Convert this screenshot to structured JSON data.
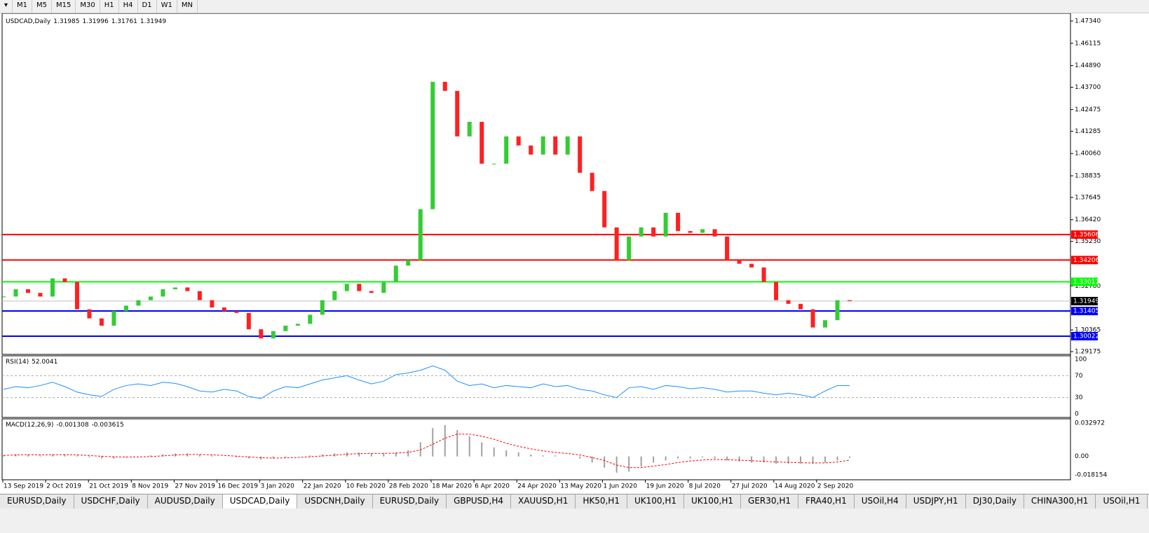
{
  "toolbar": {
    "timeframes": [
      "M1",
      "M5",
      "M15",
      "M30",
      "H1",
      "H4",
      "D1",
      "W1",
      "MN"
    ]
  },
  "price_panel": {
    "symbol": "USDCAD,Daily",
    "ohlc": [
      1.31985,
      1.31996,
      1.31761,
      1.31949
    ],
    "ylim": [
      1.29175,
      1.4734
    ],
    "yticks": [
      {
        "value": 1.4734,
        "label": "1.47340"
      },
      1.46115,
      {
        "value": 1.4489,
        "label": "1.44890"
      },
      {
        "value": 1.437,
        "label": "1.43700"
      },
      1.42475,
      1.41285,
      {
        "value": 1.4006,
        "label": "1.40060"
      },
      1.38835,
      1.37645,
      {
        "value": 1.3642,
        "label": "1.36420"
      },
      {
        "value": 1.3523,
        "label": "1.35230"
      },
      {
        "value": 1.3278,
        "label": "1.32780"
      },
      1.30365,
      1.29175
    ],
    "levels": [
      {
        "value": 1.35606,
        "color": "#ff0000"
      },
      {
        "value": 1.34206,
        "color": "#ff0000"
      },
      {
        "value": 1.33011,
        "color": "#00ff00"
      },
      {
        "value": 1.31405,
        "color": "#0000ff"
      },
      {
        "value": 1.30022,
        "color": "#0000ff"
      }
    ],
    "current": 1.31949,
    "closes": [
      1.322,
      1.326,
      1.324,
      1.322,
      1.332,
      1.33,
      1.315,
      1.31,
      1.306,
      1.314,
      1.317,
      1.32,
      1.322,
      1.326,
      1.327,
      1.325,
      1.32,
      1.316,
      1.314,
      1.313,
      1.304,
      1.299,
      1.303,
      1.306,
      1.307,
      1.312,
      1.32,
      1.325,
      1.329,
      1.325,
      1.324,
      1.33,
      1.339,
      1.342,
      1.37,
      1.44,
      1.435,
      1.41,
      1.418,
      1.395,
      1.395,
      1.41,
      1.405,
      1.4,
      1.41,
      1.4,
      1.41,
      1.39,
      1.38,
      1.36,
      1.342,
      1.355,
      1.36,
      1.355,
      1.368,
      1.358,
      1.357,
      1.359,
      1.355,
      1.342,
      1.34,
      1.338,
      1.33,
      1.32,
      1.318,
      1.315,
      1.305,
      1.309,
      1.32,
      1.31949
    ]
  },
  "rsi_panel": {
    "name": "RSI(14)",
    "last": 52.0041,
    "ylim": [
      0,
      100
    ],
    "yticks": [
      100,
      70,
      30,
      0
    ],
    "levels": [
      70,
      30
    ],
    "values": [
      45,
      50,
      48,
      52,
      58,
      50,
      40,
      35,
      32,
      45,
      52,
      55,
      52,
      58,
      56,
      50,
      42,
      40,
      45,
      42,
      32,
      28,
      42,
      50,
      48,
      55,
      62,
      66,
      70,
      62,
      55,
      60,
      72,
      75,
      80,
      88,
      80,
      60,
      52,
      55,
      48,
      52,
      50,
      48,
      55,
      50,
      52,
      45,
      42,
      35,
      30,
      48,
      50,
      45,
      52,
      50,
      46,
      48,
      45,
      40,
      42,
      42,
      38,
      35,
      38,
      35,
      30,
      42,
      52,
      52
    ]
  },
  "macd_panel": {
    "name": "MACD(12,26,9)",
    "last": [
      -0.001308,
      -0.003615
    ],
    "ylim": [
      -0.018154,
      0.032972
    ],
    "yticks": [
      0.032972,
      {
        "value": 0,
        "label": "0.00"
      },
      -0.018154
    ],
    "histogram": [
      0.001,
      0.002,
      0.002,
      0.001,
      0.002,
      0.002,
      0.001,
      -0.001,
      -0.002,
      -0.002,
      -0.001,
      0,
      0.001,
      0.002,
      0.003,
      0.003,
      0.002,
      0.001,
      0,
      -0.001,
      -0.002,
      -0.003,
      -0.002,
      -0.001,
      0,
      0.001,
      0.002,
      0.003,
      0.004,
      0.004,
      0.003,
      0.003,
      0.004,
      0.006,
      0.014,
      0.028,
      0.031,
      0.026,
      0.02,
      0.014,
      0.009,
      0.006,
      0.004,
      0.002,
      0.001,
      0.001,
      0,
      -0.002,
      -0.006,
      -0.011,
      -0.016,
      -0.015,
      -0.01,
      -0.006,
      -0.004,
      -0.002,
      -0.002,
      -0.001,
      -0.002,
      -0.004,
      -0.005,
      -0.006,
      -0.006,
      -0.007,
      -0.007,
      -0.007,
      -0.007,
      -0.006,
      -0.004,
      -0.001308
    ],
    "signal": [
      0.001,
      0.0015,
      0.0018,
      0.0016,
      0.0017,
      0.0018,
      0.0016,
      0.0009,
      0.0002,
      -0.0004,
      -0.0006,
      -0.0005,
      -0.0001,
      0.0006,
      0.0014,
      0.002,
      0.002,
      0.0016,
      0.001,
      0.0003,
      -0.0004,
      -0.0012,
      -0.0016,
      -0.0014,
      -0.001,
      -0.0003,
      0.0005,
      0.0013,
      0.0022,
      0.0028,
      0.003,
      0.003,
      0.0033,
      0.004,
      0.0065,
      0.012,
      0.018,
      0.022,
      0.022,
      0.02,
      0.017,
      0.013,
      0.01,
      0.0075,
      0.0055,
      0.004,
      0.003,
      0.0015,
      -0.001,
      -0.004,
      -0.0085,
      -0.011,
      -0.011,
      -0.0095,
      -0.008,
      -0.006,
      -0.0045,
      -0.0035,
      -0.003,
      -0.0032,
      -0.0036,
      -0.0042,
      -0.0048,
      -0.0054,
      -0.0058,
      -0.0062,
      -0.0064,
      -0.0063,
      -0.0055,
      -0.003615
    ]
  },
  "time_labels": [
    "13 Sep 2019",
    "2 Oct 2019",
    "21 Oct 2019",
    "8 Nov 2019",
    "27 Nov 2019",
    "16 Dec 2019",
    "3 Jan 2020",
    "22 Jan 2020",
    "10 Feb 2020",
    "28 Feb 2020",
    "18 Mar 2020",
    "6 Apr 2020",
    "24 Apr 2020",
    "13 May 2020",
    "1 Jun 2020",
    "19 Jun 2020",
    "8 Jul 2020",
    "27 Jul 2020",
    "14 Aug 2020",
    "2 Sep 2020"
  ],
  "tabs": {
    "items": [
      "EURUSD,Daily",
      "USDCHF,Daily",
      "AUDUSD,Daily",
      "USDCAD,Daily",
      "USDCNH,Daily",
      "EURUSD,Daily",
      "GBPUSD,H4",
      "XAUUSD,H1",
      "HK50,H1",
      "UK100,H1",
      "UK100,H1",
      "GER30,H1",
      "FRA40,H1",
      "USOil,H4",
      "USDJPY,H1",
      "DJ30,Daily",
      "CHINA300,H1",
      "USOil,H1"
    ],
    "active": 3
  }
}
